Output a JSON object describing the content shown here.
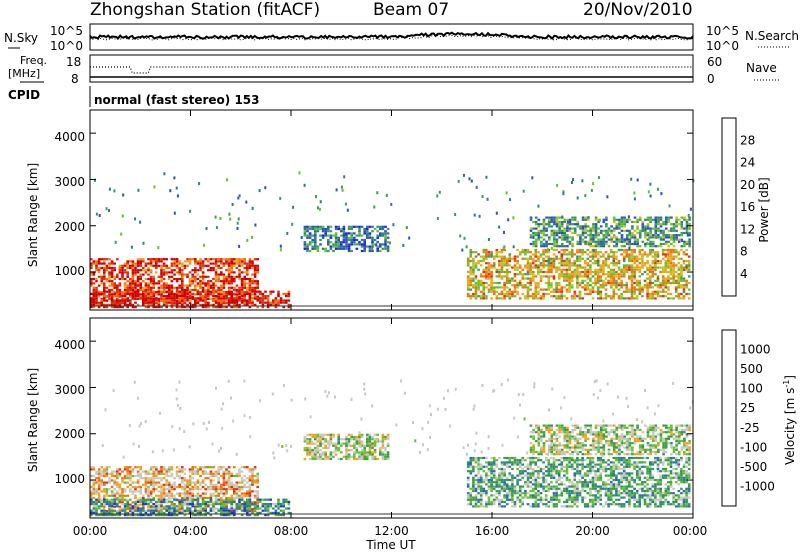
{
  "header": {
    "station": "Zhongshan Station (fitACF)",
    "beam": "Beam 07",
    "date": "20/Nov/2010"
  },
  "top_panel": {
    "left_label": "N.Sky",
    "left_ticks": [
      "10^5",
      "10^0"
    ],
    "right_ticks": [
      "10^5",
      "10^0"
    ],
    "right_label": "N.Search",
    "right_label_style": "dotted"
  },
  "freq_panel": {
    "left_label_1": "Freq.",
    "left_label_2": "[MHz]",
    "left_ticks": [
      "18",
      "8"
    ],
    "right_ticks": [
      "60",
      "0"
    ],
    "right_label": "Nave",
    "right_label_style": "dotted"
  },
  "cpid": {
    "label": "CPID",
    "value": "normal (fast stereo) 153"
  },
  "axes": {
    "ylabel": "Slant Range [km]",
    "yticks": [
      "1000",
      "2000",
      "3000",
      "4000"
    ],
    "xticks": [
      "00:00",
      "04:00",
      "08:00",
      "12:00",
      "16:00",
      "20:00",
      "00:00"
    ],
    "xlabel": "Time UT"
  },
  "colorbars": {
    "power": {
      "label": "Power [dB]",
      "ticks": [
        "4",
        "8",
        "12",
        "16",
        "20",
        "24",
        "28"
      ],
      "colors": [
        "#1d1dff",
        "#2a4fc8",
        "#2f7a8a",
        "#3f9a5a",
        "#62c02a",
        "#c6c01a",
        "#f0a020",
        "#f07010",
        "#e03010",
        "#d00000"
      ]
    },
    "velocity": {
      "label": "Velocity [m s",
      "label_sup": "-1",
      "label_end": "]",
      "ticks": [
        "1000",
        "500",
        "100",
        "25",
        "-25",
        "-100",
        "-500",
        "-1000"
      ],
      "colors": [
        "#1a3ad8",
        "#2a6ab0",
        "#2f8a70",
        "#3aa040",
        "#62c030",
        "#c8c8c0",
        "#c8c8c0",
        "#f0a020",
        "#f07010",
        "#e03010",
        "#d00000"
      ]
    }
  },
  "chart_data": {
    "type": "heatmap",
    "x": [
      "00:00",
      "04:00",
      "08:00",
      "12:00",
      "16:00",
      "20:00",
      "00:00"
    ],
    "xlabel": "Time UT",
    "ylabel": "Slant Range [km]",
    "ylim": [
      180,
      4500
    ],
    "xlim_hours": [
      0,
      24
    ],
    "panels": [
      {
        "name": "Power",
        "units": "dB",
        "range": [
          0,
          30
        ]
      },
      {
        "name": "Velocity",
        "units": "m s-1",
        "range": [
          -1000,
          1000
        ]
      }
    ],
    "regions": [
      {
        "t": [
          0.0,
          6.8
        ],
        "r": [
          300,
          1300
        ],
        "power": 26,
        "velocity": -300
      },
      {
        "t": [
          0.0,
          8.0
        ],
        "r": [
          200,
          600
        ],
        "power": 28,
        "velocity": 500
      },
      {
        "t": [
          8.5,
          12.0
        ],
        "r": [
          1400,
          2000
        ],
        "power": 8,
        "velocity": 25
      },
      {
        "t": [
          15.0,
          24.0
        ],
        "r": [
          400,
          1500
        ],
        "power": 18,
        "velocity": 300
      },
      {
        "t": [
          17.5,
          24.0
        ],
        "r": [
          1500,
          2200
        ],
        "power": 10,
        "velocity": 25
      }
    ]
  }
}
